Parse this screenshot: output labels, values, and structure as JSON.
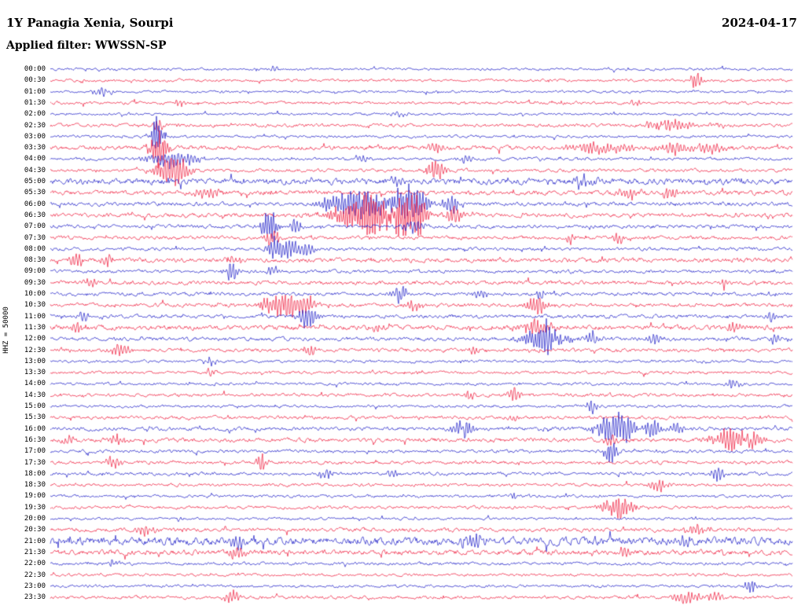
{
  "header": {
    "station_title": "1Y Panagia Xenia, Sourpi",
    "date": "2024-04-17",
    "filter": "Applied filter: WWSSN-SP"
  },
  "chart_data": {
    "type": "line",
    "subtype": "helicorder-seismogram",
    "title": "1Y Panagia Xenia, Sourpi",
    "date": "2024-04-17",
    "filter": "Applied filter: WWSSN-SP",
    "ylabel": "HHZ = 50000",
    "row_minutes": 30,
    "grid": false,
    "colors": {
      "blue": "#1212c4",
      "red": "#ee1133"
    },
    "rows": [
      {
        "label": "00:00",
        "color": "blue",
        "noise": 0.9,
        "events": [
          {
            "pos": 0.3,
            "width": 0.008,
            "amp": 3
          }
        ]
      },
      {
        "label": "00:30",
        "color": "red",
        "noise": 1.0,
        "events": [
          {
            "pos": 0.87,
            "width": 0.008,
            "amp": 9
          }
        ]
      },
      {
        "label": "01:00",
        "color": "blue",
        "noise": 0.9,
        "events": [
          {
            "pos": 0.07,
            "width": 0.015,
            "amp": 4
          }
        ]
      },
      {
        "label": "01:30",
        "color": "red",
        "noise": 1.1,
        "events": [
          {
            "pos": 0.175,
            "width": 0.006,
            "amp": 5
          },
          {
            "pos": 0.79,
            "width": 0.01,
            "amp": 3
          }
        ]
      },
      {
        "label": "02:00",
        "color": "blue",
        "noise": 0.9,
        "events": [
          {
            "pos": 0.47,
            "width": 0.01,
            "amp": 3
          }
        ]
      },
      {
        "label": "02:30",
        "color": "red",
        "noise": 1.2,
        "events": [
          {
            "pos": 0.145,
            "width": 0.008,
            "amp": 6
          },
          {
            "pos": 0.835,
            "width": 0.03,
            "amp": 6
          },
          {
            "pos": 0.9,
            "width": 0.01,
            "amp": 4
          }
        ]
      },
      {
        "label": "03:00",
        "color": "blue",
        "noise": 1.0,
        "events": [
          {
            "pos": 0.145,
            "width": 0.008,
            "amp": 22
          }
        ]
      },
      {
        "label": "03:30",
        "color": "red",
        "noise": 1.5,
        "events": [
          {
            "pos": 0.145,
            "width": 0.012,
            "amp": 18
          },
          {
            "pos": 0.52,
            "width": 0.01,
            "amp": 5
          },
          {
            "pos": 0.745,
            "width": 0.04,
            "amp": 7
          },
          {
            "pos": 0.84,
            "width": 0.02,
            "amp": 6
          },
          {
            "pos": 0.885,
            "width": 0.025,
            "amp": 5
          }
        ]
      },
      {
        "label": "04:00",
        "color": "blue",
        "noise": 1.1,
        "events": [
          {
            "pos": 0.165,
            "width": 0.03,
            "amp": 9
          },
          {
            "pos": 0.42,
            "width": 0.01,
            "amp": 4
          },
          {
            "pos": 0.56,
            "width": 0.01,
            "amp": 4
          }
        ]
      },
      {
        "label": "04:30",
        "color": "red",
        "noise": 1.2,
        "events": [
          {
            "pos": 0.16,
            "width": 0.02,
            "amp": 12
          },
          {
            "pos": 0.175,
            "width": 0.015,
            "amp": 10
          },
          {
            "pos": 0.52,
            "width": 0.012,
            "amp": 10
          }
        ]
      },
      {
        "label": "05:00",
        "color": "blue",
        "noise": 2.2,
        "events": [
          {
            "pos": 0.47,
            "width": 0.01,
            "amp": 4
          },
          {
            "pos": 0.72,
            "width": 0.015,
            "amp": 7
          }
        ]
      },
      {
        "label": "05:30",
        "color": "red",
        "noise": 1.6,
        "events": [
          {
            "pos": 0.21,
            "width": 0.02,
            "amp": 6
          },
          {
            "pos": 0.78,
            "width": 0.015,
            "amp": 6
          },
          {
            "pos": 0.835,
            "width": 0.012,
            "amp": 7
          }
        ]
      },
      {
        "label": "06:00",
        "color": "blue",
        "noise": 1.4,
        "events": [
          {
            "pos": 0.42,
            "width": 0.05,
            "amp": 14
          },
          {
            "pos": 0.465,
            "width": 0.03,
            "amp": 16
          },
          {
            "pos": 0.49,
            "width": 0.02,
            "amp": 14
          },
          {
            "pos": 0.54,
            "width": 0.012,
            "amp": 10
          }
        ]
      },
      {
        "label": "06:30",
        "color": "red",
        "noise": 1.5,
        "events": [
          {
            "pos": 0.425,
            "width": 0.04,
            "amp": 20
          },
          {
            "pos": 0.455,
            "width": 0.03,
            "amp": 22
          },
          {
            "pos": 0.475,
            "width": 0.025,
            "amp": 20
          },
          {
            "pos": 0.49,
            "width": 0.02,
            "amp": 16
          },
          {
            "pos": 0.545,
            "width": 0.012,
            "amp": 10
          }
        ]
      },
      {
        "label": "07:00",
        "color": "blue",
        "noise": 1.3,
        "events": [
          {
            "pos": 0.295,
            "width": 0.01,
            "amp": 18
          },
          {
            "pos": 0.33,
            "width": 0.008,
            "amp": 8
          },
          {
            "pos": 0.49,
            "width": 0.015,
            "amp": 6
          }
        ]
      },
      {
        "label": "07:30",
        "color": "red",
        "noise": 1.3,
        "events": [
          {
            "pos": 0.3,
            "width": 0.01,
            "amp": 10
          },
          {
            "pos": 0.7,
            "width": 0.006,
            "amp": 7
          },
          {
            "pos": 0.765,
            "width": 0.008,
            "amp": 6
          }
        ]
      },
      {
        "label": "08:00",
        "color": "blue",
        "noise": 1.2,
        "events": [
          {
            "pos": 0.305,
            "width": 0.012,
            "amp": 12
          },
          {
            "pos": 0.325,
            "width": 0.01,
            "amp": 10
          },
          {
            "pos": 0.345,
            "width": 0.008,
            "amp": 8
          }
        ]
      },
      {
        "label": "08:30",
        "color": "red",
        "noise": 1.6,
        "events": [
          {
            "pos": 0.035,
            "width": 0.008,
            "amp": 8
          },
          {
            "pos": 0.075,
            "width": 0.01,
            "amp": 6
          },
          {
            "pos": 0.245,
            "width": 0.01,
            "amp": 5
          }
        ]
      },
      {
        "label": "09:00",
        "color": "blue",
        "noise": 1.2,
        "events": [
          {
            "pos": 0.245,
            "width": 0.01,
            "amp": 10
          },
          {
            "pos": 0.3,
            "width": 0.008,
            "amp": 6
          }
        ]
      },
      {
        "label": "09:30",
        "color": "red",
        "noise": 1.5,
        "events": [
          {
            "pos": 0.055,
            "width": 0.01,
            "amp": 5
          },
          {
            "pos": 0.91,
            "width": 0.008,
            "amp": 6
          }
        ]
      },
      {
        "label": "10:00",
        "color": "blue",
        "noise": 1.3,
        "events": [
          {
            "pos": 0.47,
            "width": 0.01,
            "amp": 9
          },
          {
            "pos": 0.58,
            "width": 0.008,
            "amp": 7
          },
          {
            "pos": 0.66,
            "width": 0.006,
            "amp": 5
          }
        ]
      },
      {
        "label": "10:30",
        "color": "red",
        "noise": 1.4,
        "events": [
          {
            "pos": 0.305,
            "width": 0.02,
            "amp": 12
          },
          {
            "pos": 0.325,
            "width": 0.015,
            "amp": 10
          },
          {
            "pos": 0.345,
            "width": 0.012,
            "amp": 9
          },
          {
            "pos": 0.49,
            "width": 0.008,
            "amp": 7
          },
          {
            "pos": 0.655,
            "width": 0.012,
            "amp": 11
          }
        ]
      },
      {
        "label": "11:00",
        "color": "blue",
        "noise": 1.3,
        "events": [
          {
            "pos": 0.045,
            "width": 0.008,
            "amp": 5
          },
          {
            "pos": 0.345,
            "width": 0.012,
            "amp": 12
          },
          {
            "pos": 0.97,
            "width": 0.008,
            "amp": 6
          }
        ]
      },
      {
        "label": "11:30",
        "color": "red",
        "noise": 1.7,
        "events": [
          {
            "pos": 0.035,
            "width": 0.008,
            "amp": 8
          },
          {
            "pos": 0.44,
            "width": 0.008,
            "amp": 5
          },
          {
            "pos": 0.655,
            "width": 0.02,
            "amp": 8
          },
          {
            "pos": 0.92,
            "width": 0.01,
            "amp": 6
          }
        ]
      },
      {
        "label": "12:00",
        "color": "blue",
        "noise": 1.4,
        "events": [
          {
            "pos": 0.665,
            "width": 0.025,
            "amp": 16
          },
          {
            "pos": 0.675,
            "width": 0.015,
            "amp": 12
          },
          {
            "pos": 0.73,
            "width": 0.012,
            "amp": 6
          },
          {
            "pos": 0.815,
            "width": 0.01,
            "amp": 5
          },
          {
            "pos": 0.975,
            "width": 0.008,
            "amp": 6
          }
        ]
      },
      {
        "label": "12:30",
        "color": "red",
        "noise": 1.3,
        "events": [
          {
            "pos": 0.095,
            "width": 0.012,
            "amp": 7
          },
          {
            "pos": 0.35,
            "width": 0.008,
            "amp": 6
          },
          {
            "pos": 0.57,
            "width": 0.008,
            "amp": 5
          }
        ]
      },
      {
        "label": "13:00",
        "color": "blue",
        "noise": 1.0,
        "events": [
          {
            "pos": 0.215,
            "width": 0.008,
            "amp": 4
          }
        ]
      },
      {
        "label": "13:30",
        "color": "red",
        "noise": 1.1,
        "events": [
          {
            "pos": 0.215,
            "width": 0.008,
            "amp": 4
          }
        ]
      },
      {
        "label": "14:00",
        "color": "blue",
        "noise": 1.0,
        "events": [
          {
            "pos": 0.92,
            "width": 0.012,
            "amp": 5
          }
        ]
      },
      {
        "label": "14:30",
        "color": "red",
        "noise": 1.2,
        "events": [
          {
            "pos": 0.565,
            "width": 0.008,
            "amp": 6
          },
          {
            "pos": 0.625,
            "width": 0.008,
            "amp": 7
          }
        ]
      },
      {
        "label": "15:00",
        "color": "blue",
        "noise": 1.0,
        "events": [
          {
            "pos": 0.73,
            "width": 0.008,
            "amp": 6
          }
        ]
      },
      {
        "label": "15:30",
        "color": "red",
        "noise": 1.2,
        "events": [
          {
            "pos": 0.625,
            "width": 0.006,
            "amp": 4
          }
        ]
      },
      {
        "label": "16:00",
        "color": "blue",
        "noise": 1.3,
        "events": [
          {
            "pos": 0.555,
            "width": 0.015,
            "amp": 10
          },
          {
            "pos": 0.755,
            "width": 0.02,
            "amp": 12
          },
          {
            "pos": 0.775,
            "width": 0.015,
            "amp": 12
          },
          {
            "pos": 0.81,
            "width": 0.012,
            "amp": 10
          },
          {
            "pos": 0.845,
            "width": 0.01,
            "amp": 8
          }
        ]
      },
      {
        "label": "16:30",
        "color": "red",
        "noise": 1.5,
        "events": [
          {
            "pos": 0.025,
            "width": 0.01,
            "amp": 6
          },
          {
            "pos": 0.09,
            "width": 0.012,
            "amp": 7
          },
          {
            "pos": 0.755,
            "width": 0.008,
            "amp": 6
          },
          {
            "pos": 0.92,
            "width": 0.025,
            "amp": 12
          },
          {
            "pos": 0.945,
            "width": 0.015,
            "amp": 8
          }
        ]
      },
      {
        "label": "17:00",
        "color": "blue",
        "noise": 1.2,
        "events": [
          {
            "pos": 0.755,
            "width": 0.008,
            "amp": 14
          }
        ]
      },
      {
        "label": "17:30",
        "color": "red",
        "noise": 1.2,
        "events": [
          {
            "pos": 0.085,
            "width": 0.01,
            "amp": 6
          },
          {
            "pos": 0.285,
            "width": 0.008,
            "amp": 9
          }
        ]
      },
      {
        "label": "18:00",
        "color": "blue",
        "noise": 1.2,
        "events": [
          {
            "pos": 0.37,
            "width": 0.01,
            "amp": 5
          },
          {
            "pos": 0.46,
            "width": 0.008,
            "amp": 4
          },
          {
            "pos": 0.9,
            "width": 0.01,
            "amp": 7
          }
        ]
      },
      {
        "label": "18:30",
        "color": "red",
        "noise": 1.1,
        "events": [
          {
            "pos": 0.82,
            "width": 0.012,
            "amp": 7
          }
        ]
      },
      {
        "label": "19:00",
        "color": "blue",
        "noise": 1.0,
        "events": [
          {
            "pos": 0.625,
            "width": 0.006,
            "amp": 4
          }
        ]
      },
      {
        "label": "19:30",
        "color": "red",
        "noise": 1.1,
        "events": [
          {
            "pos": 0.765,
            "width": 0.02,
            "amp": 12
          }
        ]
      },
      {
        "label": "20:00",
        "color": "blue",
        "noise": 0.9,
        "events": [
          {
            "pos": 0.175,
            "width": 0.006,
            "amp": 3
          }
        ]
      },
      {
        "label": "20:30",
        "color": "red",
        "noise": 1.4,
        "events": [
          {
            "pos": 0.125,
            "width": 0.015,
            "amp": 5
          },
          {
            "pos": 0.87,
            "width": 0.015,
            "amp": 6
          }
        ]
      },
      {
        "label": "21:00",
        "color": "blue",
        "noise": 2.8,
        "events": [
          {
            "pos": 0.25,
            "width": 0.01,
            "amp": 7
          },
          {
            "pos": 0.575,
            "width": 0.015,
            "amp": 8
          },
          {
            "pos": 0.855,
            "width": 0.01,
            "amp": 6
          }
        ]
      },
      {
        "label": "21:30",
        "color": "red",
        "noise": 1.8,
        "events": [
          {
            "pos": 0.25,
            "width": 0.01,
            "amp": 8
          },
          {
            "pos": 0.775,
            "width": 0.008,
            "amp": 6
          }
        ]
      },
      {
        "label": "22:00",
        "color": "blue",
        "noise": 1.1,
        "events": [
          {
            "pos": 0.085,
            "width": 0.008,
            "amp": 4
          }
        ]
      },
      {
        "label": "22:30",
        "color": "red",
        "noise": 1.0,
        "events": []
      },
      {
        "label": "23:00",
        "color": "blue",
        "noise": 1.0,
        "events": [
          {
            "pos": 0.945,
            "width": 0.008,
            "amp": 8
          }
        ]
      },
      {
        "label": "23:30",
        "color": "red",
        "noise": 1.2,
        "events": [
          {
            "pos": 0.245,
            "width": 0.01,
            "amp": 8
          },
          {
            "pos": 0.86,
            "width": 0.02,
            "amp": 6
          },
          {
            "pos": 0.895,
            "width": 0.012,
            "amp": 5
          }
        ]
      }
    ]
  }
}
